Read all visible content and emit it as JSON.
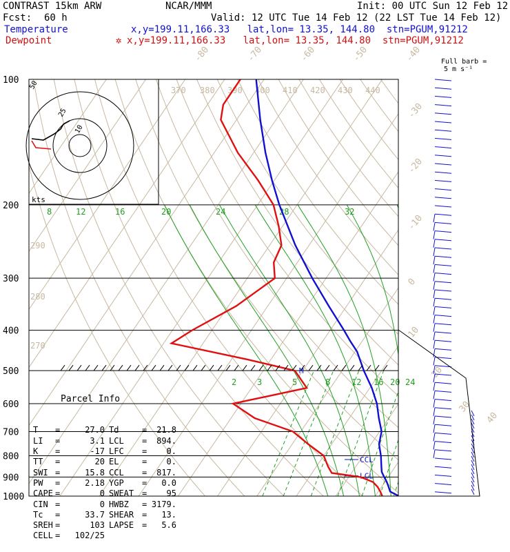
{
  "header": {
    "model": "CONTRAST 15km ARW",
    "center": "NCAR/MMM",
    "init": "Init: 00 UTC Sun 12 Feb 12",
    "fcst_label": "Fcst:",
    "fcst_value": "60 h",
    "valid": "Valid: 12 UTC Tue 14 Feb 12 (22 LST Tue 14 Feb 12)",
    "temperature_label": "Temperature",
    "dewpoint_label": "Dewpoint",
    "temp_loc": "x,y=199.11,166.33   lat,lon= 13.35, 144.80  stn=PGUM,91212",
    "dew_loc": "x,y=199.11,166.33   lat,lon= 13.35, 144.80  stn=PGUM,91212",
    "star": "✲",
    "full_barb_label_1": "Full barb =",
    "full_barb_label_2": "5 m s⁻¹"
  },
  "colors": {
    "temperature": "#1010d0",
    "dewpoint": "#e01010",
    "isotherm": "#c8b8a0",
    "dry_adiabat": "#c8b8a0",
    "moist_adiabat": "#20a020",
    "isobar": "#000000",
    "wind_barb": "#1010d0"
  },
  "chart_data": {
    "type": "line",
    "title": "CONTRAST 15km ARW skew-T log-p sounding",
    "y_axis": "pressure (hPa), log scale",
    "ylim": [
      1000,
      100
    ],
    "pressure_tick_labels": [
      "100",
      "200",
      "300",
      "400",
      "500",
      "600",
      "700",
      "800",
      "900",
      "1000"
    ],
    "isotherm_labels": [
      "-80",
      "-70",
      "-60",
      "-50",
      "-40",
      "-30",
      "-20",
      "-10",
      "0",
      "10",
      "20",
      "30",
      "40"
    ],
    "dry_adiabat_labels": [
      "370",
      "380",
      "390",
      "400",
      "410",
      "420",
      "430",
      "440",
      "290",
      "280",
      "270"
    ],
    "moist_adiabat_labels": [
      "8",
      "12",
      "16",
      "20",
      "24",
      "28",
      "32"
    ],
    "mixing_ratio_labels": [
      "2",
      "3",
      "5",
      "8",
      "12",
      "16",
      "20",
      "24"
    ],
    "series": [
      {
        "name": "Temperature",
        "color": "#1010d0",
        "points": [
          [
            1000,
            26.0
          ],
          [
            975,
            23.0
          ],
          [
            950,
            21.8
          ],
          [
            925,
            20.5
          ],
          [
            900,
            19.0
          ],
          [
            875,
            17.5
          ],
          [
            850,
            16.5
          ],
          [
            800,
            14.5
          ],
          [
            750,
            12.0
          ],
          [
            700,
            10.5
          ],
          [
            650,
            7.5
          ],
          [
            600,
            4.5
          ],
          [
            550,
            0.5
          ],
          [
            500,
            -4.5
          ],
          [
            450,
            -9.5
          ],
          [
            425,
            -13.0
          ],
          [
            400,
            -16.5
          ],
          [
            350,
            -24.5
          ],
          [
            300,
            -33.5
          ],
          [
            250,
            -43.5
          ],
          [
            200,
            -54.5
          ],
          [
            175,
            -60.5
          ],
          [
            150,
            -67.0
          ],
          [
            125,
            -74.0
          ],
          [
            100,
            -82.0
          ]
        ]
      },
      {
        "name": "Dewpoint",
        "color": "#e01010",
        "points": [
          [
            1000,
            21.8
          ],
          [
            975,
            20.5
          ],
          [
            950,
            19.0
          ],
          [
            925,
            17.0
          ],
          [
            900,
            13.0
          ],
          [
            880,
            5.0
          ],
          [
            850,
            3.0
          ],
          [
            800,
            0.0
          ],
          [
            750,
            -6.0
          ],
          [
            700,
            -12.0
          ],
          [
            650,
            -24.0
          ],
          [
            600,
            -32.0
          ],
          [
            550,
            -16.0
          ],
          [
            500,
            -22.0
          ],
          [
            470,
            -36.0
          ],
          [
            430,
            -58.0
          ],
          [
            400,
            -55.0
          ],
          [
            350,
            -48.0
          ],
          [
            300,
            -43.0
          ],
          [
            275,
            -46.0
          ],
          [
            250,
            -47.0
          ],
          [
            225,
            -51.0
          ],
          [
            200,
            -56.0
          ],
          [
            175,
            -64.0
          ],
          [
            150,
            -74.0
          ],
          [
            125,
            -84.0
          ],
          [
            115,
            -86.0
          ],
          [
            100,
            -86.0
          ]
        ]
      }
    ],
    "annotations": [
      {
        "label": "CCL",
        "pressure": 817
      },
      {
        "label": "LCL",
        "pressure": 894
      },
      {
        "label": "M",
        "pressure": 500
      }
    ]
  },
  "hodograph": {
    "units": "kts",
    "rings": [
      "10",
      "25",
      "50"
    ]
  },
  "parcel": {
    "title": "Parcel Info",
    "rows": [
      [
        "T",
        "=",
        "27.0",
        "Td",
        "=",
        "21.8"
      ],
      [
        "LI",
        "=",
        "3.1",
        "LCL",
        "=",
        "894."
      ],
      [
        "K",
        "=",
        "-17",
        "LFC",
        "=",
        "0."
      ],
      [
        "TT",
        "=",
        "20",
        "EL",
        "=",
        "0."
      ],
      [
        "SWI",
        "=",
        "15.8",
        "CCL",
        "=",
        "817."
      ],
      [
        "PW",
        "=",
        "2.18",
        "YGP",
        "=",
        "0.0"
      ],
      [
        "CAPE",
        "=",
        "0",
        "SWEAT",
        "=",
        "95"
      ],
      [
        "CIN",
        "=",
        "0",
        "HWBZ",
        "=",
        "3179."
      ],
      [
        "Tc",
        "=",
        "33.7",
        "SHEAR",
        "=",
        "13."
      ],
      [
        "SREH",
        "=",
        "103",
        "LAPSE",
        "=",
        "5.6"
      ],
      [
        "CELL",
        "=",
        "102/25",
        "",
        "",
        ""
      ]
    ]
  }
}
